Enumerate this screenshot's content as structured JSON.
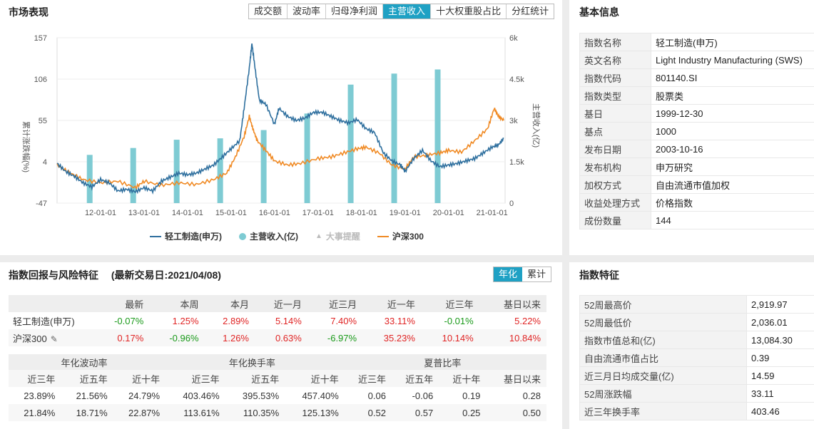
{
  "market": {
    "title": "市场表现",
    "tabs": [
      "成交额",
      "波动率",
      "归母净利润",
      "主营收入",
      "十大权重股占比",
      "分红统计"
    ],
    "active_tab": 3
  },
  "chart_data": {
    "type": "line",
    "ylabel_left": "累计涨跌幅(%)",
    "ylabel_right": "主营收入(亿)",
    "ylim_left": [
      -47,
      157
    ],
    "yticks_left": [
      "157",
      "106",
      "55",
      "4",
      "-47"
    ],
    "ylim_right": [
      0,
      6000
    ],
    "yticks_right": [
      "6k",
      "4.5k",
      "3k",
      "1.5k",
      "0"
    ],
    "xticks": [
      "12-01-01",
      "13-01-01",
      "14-01-01",
      "15-01-01",
      "16-01-01",
      "17-01-01",
      "18-01-01",
      "19-01-01",
      "20-01-01",
      "21-01-01"
    ],
    "x_range": [
      2011.0,
      2021.3
    ],
    "legend": [
      "轻工制造(申万)",
      "主营收入(亿)",
      "大事提醒",
      "沪深300"
    ],
    "colors": {
      "index": "#2e6f9e",
      "revenue": "#7ecbd3",
      "hs300": "#f08a24",
      "event": "#bbbbbb"
    },
    "bars": {
      "name": "主营收入(亿)",
      "x": [
        2011.75,
        2012.75,
        2013.75,
        2014.75,
        2015.75,
        2016.75,
        2017.75,
        2018.75,
        2019.75
      ],
      "values": [
        1750,
        2000,
        2300,
        2350,
        2650,
        3250,
        4300,
        4700,
        4850
      ]
    },
    "series": [
      {
        "name": "轻工制造(申万)",
        "x": [
          2011.0,
          2011.2,
          2011.4,
          2011.6,
          2011.8,
          2012.0,
          2012.2,
          2012.4,
          2012.6,
          2012.8,
          2013.0,
          2013.2,
          2013.4,
          2013.6,
          2013.8,
          2014.0,
          2014.2,
          2014.4,
          2014.6,
          2014.8,
          2015.0,
          2015.2,
          2015.3,
          2015.42,
          2015.48,
          2015.55,
          2015.65,
          2015.8,
          2016.0,
          2016.1,
          2016.3,
          2016.5,
          2016.7,
          2016.9,
          2017.1,
          2017.3,
          2017.5,
          2017.7,
          2017.9,
          2018.1,
          2018.3,
          2018.5,
          2018.7,
          2018.9,
          2019.0,
          2019.2,
          2019.4,
          2019.6,
          2019.8,
          2020.0,
          2020.2,
          2020.4,
          2020.6,
          2020.8,
          2021.0,
          2021.15,
          2021.27
        ],
        "values": [
          2,
          -8,
          -14,
          -22,
          -27,
          -18,
          -22,
          -32,
          -30,
          -33,
          -28,
          -32,
          -20,
          -15,
          -10,
          -12,
          -10,
          -5,
          0,
          10,
          20,
          30,
          70,
          120,
          150,
          120,
          80,
          75,
          50,
          70,
          60,
          55,
          58,
          65,
          65,
          60,
          55,
          52,
          56,
          45,
          40,
          15,
          5,
          0,
          -8,
          8,
          18,
          5,
          -2,
          0,
          2,
          5,
          8,
          15,
          22,
          25,
          33
        ]
      },
      {
        "name": "沪深300",
        "x": [
          2011.0,
          2011.3,
          2011.6,
          2012.0,
          2012.4,
          2012.8,
          2013.0,
          2013.4,
          2013.8,
          2014.2,
          2014.6,
          2014.9,
          2015.1,
          2015.3,
          2015.42,
          2015.5,
          2015.6,
          2015.8,
          2016.0,
          2016.3,
          2016.6,
          2017.0,
          2017.3,
          2017.6,
          2017.9,
          2018.1,
          2018.4,
          2018.7,
          2019.0,
          2019.2,
          2019.5,
          2019.8,
          2020.0,
          2020.3,
          2020.6,
          2020.9,
          2021.05,
          2021.15,
          2021.27
        ],
        "values": [
          0,
          -10,
          -18,
          -22,
          -20,
          -28,
          -20,
          -25,
          -22,
          -24,
          -18,
          -10,
          10,
          35,
          60,
          45,
          30,
          18,
          5,
          0,
          2,
          8,
          10,
          15,
          20,
          22,
          15,
          0,
          -5,
          10,
          12,
          15,
          18,
          16,
          30,
          45,
          70,
          60,
          55
        ]
      }
    ]
  },
  "basic": {
    "title": "基本信息",
    "rows": [
      [
        "指数名称",
        "轻工制造(申万)"
      ],
      [
        "英文名称",
        "Light Industry Manufacturing (SWS)"
      ],
      [
        "指数代码",
        "801140.SI"
      ],
      [
        "指数类型",
        "股票类"
      ],
      [
        "基日",
        "1999-12-30"
      ],
      [
        "基点",
        "1000"
      ],
      [
        "发布日期",
        "2003-10-16"
      ],
      [
        "发布机构",
        "申万研究"
      ],
      [
        "加权方式",
        "自由流通市值加权"
      ],
      [
        "收益处理方式",
        "价格指数"
      ],
      [
        "成份数量",
        "144"
      ]
    ]
  },
  "returns": {
    "title": "指数回报与风险特征",
    "date_label": "(最新交易日:2021/04/08)",
    "toggle": [
      "年化",
      "累计"
    ],
    "headers": [
      "",
      "最新",
      "本周",
      "本月",
      "近一月",
      "近三月",
      "近一年",
      "近三年",
      "基日以来"
    ],
    "rows": [
      {
        "name": "轻工制造(申万)",
        "values": [
          "-0.07%",
          "1.25%",
          "2.89%",
          "5.14%",
          "7.40%",
          "33.11%",
          "-0.01%",
          "5.22%"
        ],
        "signs": [
          "d",
          "u",
          "u",
          "u",
          "u",
          "u",
          "d",
          "u"
        ]
      },
      {
        "name": "沪深300",
        "values": [
          "0.17%",
          "-0.96%",
          "1.26%",
          "0.63%",
          "-6.97%",
          "35.23%",
          "10.14%",
          "10.84%"
        ],
        "signs": [
          "u",
          "d",
          "u",
          "u",
          "d",
          "u",
          "u",
          "u"
        ]
      }
    ],
    "risk_groups": [
      "年化波动率",
      "年化换手率",
      "夏普比率"
    ],
    "risk_sub": [
      "近三年",
      "近五年",
      "近十年",
      "近三年",
      "近五年",
      "近十年",
      "近三年",
      "近五年",
      "近十年",
      "基日以来"
    ],
    "risk_rows": [
      [
        "23.89%",
        "21.56%",
        "24.79%",
        "403.46%",
        "395.53%",
        "457.40%",
        "0.06",
        "-0.06",
        "0.19",
        "0.28"
      ],
      [
        "21.84%",
        "18.71%",
        "22.87%",
        "113.61%",
        "110.35%",
        "125.13%",
        "0.52",
        "0.57",
        "0.25",
        "0.50"
      ]
    ]
  },
  "features": {
    "title": "指数特征",
    "rows": [
      [
        "52周最高价",
        "2,919.97"
      ],
      [
        "52周最低价",
        "2,036.01"
      ],
      [
        "指数市值总和(亿)",
        "13,084.30"
      ],
      [
        "自由流通市值占比",
        "0.39"
      ],
      [
        "近三月日均成交量(亿)",
        "14.59"
      ],
      [
        "52周涨跌幅",
        "33.11"
      ],
      [
        "近三年换手率",
        "403.46"
      ]
    ]
  }
}
